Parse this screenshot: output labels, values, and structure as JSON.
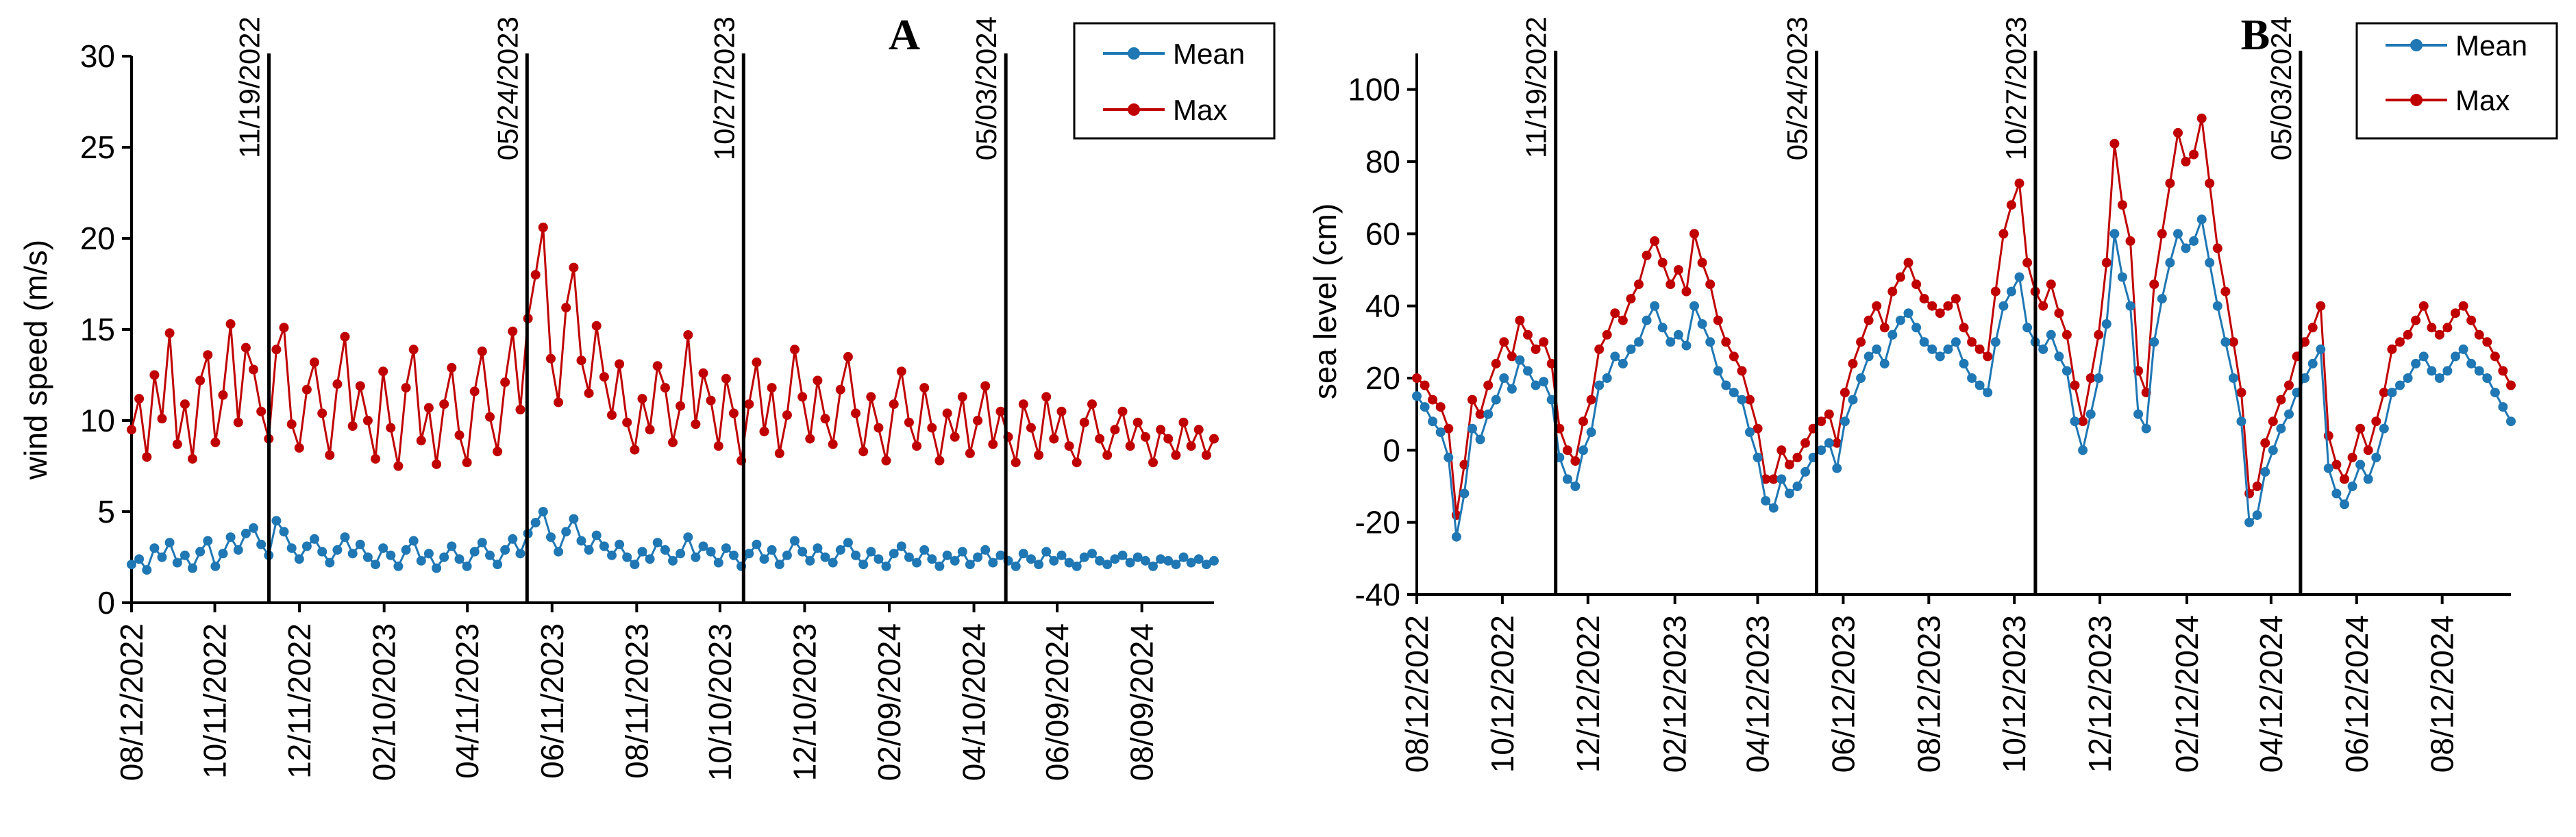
{
  "colors": {
    "mean": "#1f77b4",
    "max": "#c00000",
    "axis": "#000000"
  },
  "chart_data": [
    {
      "type": "line",
      "panel_label": "A",
      "title": "",
      "xlabel": "",
      "ylabel": "wind speed (m/s)",
      "ylim": [
        0,
        30
      ],
      "yticks": [
        "0",
        "5",
        "10",
        "15",
        "20",
        "25",
        "30"
      ],
      "x_start": "2022-08-12",
      "x_end": "2024-09-30",
      "x_tick_labels": [
        "08/12/2022",
        "10/11/2022",
        "12/11/2022",
        "02/10/2023",
        "04/11/2023",
        "06/11/2023",
        "08/11/2023",
        "10/10/2023",
        "12/10/2023",
        "02/09/2024",
        "04/10/2024",
        "06/09/2024",
        "08/09/2024"
      ],
      "x_tick_dates": [
        "2022-08-12",
        "2022-10-11",
        "2022-12-11",
        "2023-02-10",
        "2023-04-11",
        "2023-06-11",
        "2023-08-11",
        "2023-10-10",
        "2023-12-10",
        "2024-02-09",
        "2024-04-10",
        "2024-06-09",
        "2024-08-09"
      ],
      "event_labels": [
        "11/19/2022",
        "05/24/2023",
        "10/27/2023",
        "05/03/2024"
      ],
      "event_dates": [
        "2022-11-19",
        "2023-05-24",
        "2023-10-27",
        "2024-05-03"
      ],
      "legend": {
        "position": "top-right",
        "entries": [
          "Mean",
          "Max"
        ]
      },
      "series": [
        {
          "name": "Mean",
          "description": "daily mean wind speed; sampled every 5 days (values estimated)",
          "values": [
            2.1,
            2.4,
            1.8,
            3.0,
            2.5,
            3.3,
            2.2,
            2.6,
            1.9,
            2.8,
            3.4,
            2.0,
            2.7,
            3.6,
            2.9,
            3.8,
            4.1,
            3.2,
            2.6,
            4.5,
            3.9,
            3.0,
            2.4,
            3.1,
            3.5,
            2.8,
            2.2,
            2.9,
            3.6,
            2.7,
            3.2,
            2.5,
            2.1,
            3.0,
            2.6,
            2.0,
            2.9,
            3.4,
            2.3,
            2.7,
            1.9,
            2.5,
            3.1,
            2.4,
            2.0,
            2.8,
            3.3,
            2.6,
            2.1,
            2.9,
            3.5,
            2.7,
            3.8,
            4.4,
            5.0,
            3.6,
            2.8,
            3.9,
            4.6,
            3.4,
            2.9,
            3.7,
            3.1,
            2.6,
            3.2,
            2.5,
            2.1,
            2.8,
            2.4,
            3.3,
            2.9,
            2.3,
            2.7,
            3.6,
            2.5,
            3.1,
            2.8,
            2.2,
            3.0,
            2.6,
            2.0,
            2.7,
            3.2,
            2.4,
            2.9,
            2.1,
            2.6,
            3.4,
            2.8,
            2.3,
            3.0,
            2.5,
            2.2,
            2.9,
            3.3,
            2.6,
            2.1,
            2.8,
            2.4,
            2.0,
            2.7,
            3.1,
            2.5,
            2.2,
            2.9,
            2.4,
            2.0,
            2.6,
            2.3,
            2.8,
            2.1,
            2.5,
            2.9,
            2.2,
            2.6,
            2.3,
            2.0,
            2.7,
            2.4,
            2.1,
            2.8,
            2.3,
            2.6,
            2.2,
            2.0,
            2.5,
            2.7,
            2.3,
            2.1,
            2.4,
            2.6,
            2.2,
            2.5,
            2.3,
            2.0,
            2.4,
            2.3,
            2.1,
            2.5,
            2.2,
            2.4,
            2.1,
            2.3
          ]
        },
        {
          "name": "Max",
          "description": "daily maximum wind speed; sampled every 5 days (values estimated)",
          "values": [
            9.5,
            11.2,
            8.0,
            12.5,
            10.1,
            14.8,
            8.7,
            10.9,
            7.9,
            12.2,
            13.6,
            8.8,
            11.4,
            15.3,
            9.9,
            14.0,
            12.8,
            10.5,
            9.0,
            13.9,
            15.1,
            9.8,
            8.5,
            11.7,
            13.2,
            10.4,
            8.1,
            12.0,
            14.6,
            9.7,
            11.9,
            10.0,
            7.9,
            12.7,
            9.6,
            7.5,
            11.8,
            13.9,
            8.9,
            10.7,
            7.6,
            10.9,
            12.9,
            9.2,
            7.7,
            11.6,
            13.8,
            10.2,
            8.3,
            12.1,
            14.9,
            10.6,
            15.6,
            18.0,
            20.6,
            13.4,
            11.0,
            16.2,
            18.4,
            13.3,
            11.5,
            15.2,
            12.4,
            10.3,
            13.1,
            9.9,
            8.4,
            11.2,
            9.5,
            13.0,
            11.8,
            8.8,
            10.8,
            14.7,
            9.8,
            12.6,
            11.1,
            8.6,
            12.3,
            10.4,
            7.8,
            10.9,
            13.2,
            9.4,
            11.8,
            8.2,
            10.3,
            13.9,
            11.3,
            9.0,
            12.2,
            10.1,
            8.7,
            11.7,
            13.5,
            10.4,
            8.3,
            11.3,
            9.6,
            7.8,
            10.9,
            12.7,
            9.9,
            8.6,
            11.8,
            9.6,
            7.8,
            10.4,
            9.1,
            11.3,
            8.2,
            10.0,
            11.9,
            8.7,
            10.5,
            9.1,
            7.7,
            10.9,
            9.6,
            8.1,
            11.3,
            9.0,
            10.5,
            8.6,
            7.7,
            9.9,
            10.9,
            9.0,
            8.1,
            9.5,
            10.5,
            8.6,
            9.9,
            9.1,
            7.7,
            9.5,
            9.0,
            8.1,
            9.9,
            8.6,
            9.5,
            8.1,
            9.0
          ]
        }
      ]
    },
    {
      "type": "line",
      "panel_label": "B",
      "title": "",
      "xlabel": "",
      "ylabel": "sea level (cm)",
      "ylim": [
        -40,
        110
      ],
      "yticks": [
        "-40",
        "-20",
        "0",
        "20",
        "40",
        "60",
        "80",
        "100"
      ],
      "x_start": "2022-08-12",
      "x_end": "2024-09-30",
      "x_tick_labels": [
        "08/12/2022",
        "10/12/2022",
        "12/12/2022",
        "02/12/2023",
        "04/12/2023",
        "06/12/2023",
        "08/12/2023",
        "10/12/2023",
        "12/12/2023",
        "02/12/2024",
        "04/12/2024",
        "06/12/2024",
        "08/12/2024"
      ],
      "x_tick_dates": [
        "2022-08-12",
        "2022-10-12",
        "2022-12-12",
        "2023-02-12",
        "2023-04-12",
        "2023-06-12",
        "2023-08-12",
        "2023-10-12",
        "2023-12-12",
        "2024-02-12",
        "2024-04-12",
        "2024-06-12",
        "2024-08-12"
      ],
      "event_labels": [
        "11/19/2022",
        "05/24/2023",
        "10/27/2023",
        "05/03/2024"
      ],
      "event_dates": [
        "2022-11-19",
        "2023-05-24",
        "2023-10-27",
        "2024-05-03"
      ],
      "legend": {
        "position": "top-right",
        "entries": [
          "Mean",
          "Max"
        ]
      },
      "series": [
        {
          "name": "Mean",
          "description": "daily mean sea level; sampled every 5 days (values estimated)",
          "values": [
            15,
            12,
            8,
            5,
            -2,
            -24,
            -12,
            6,
            3,
            10,
            14,
            20,
            17,
            25,
            22,
            18,
            19,
            14,
            -2,
            -8,
            -10,
            0,
            5,
            18,
            20,
            26,
            24,
            28,
            30,
            36,
            40,
            34,
            30,
            32,
            29,
            40,
            35,
            30,
            22,
            18,
            16,
            14,
            5,
            -2,
            -14,
            -16,
            -8,
            -12,
            -10,
            -6,
            -2,
            0,
            2,
            -5,
            8,
            14,
            20,
            26,
            28,
            24,
            32,
            36,
            38,
            34,
            30,
            28,
            26,
            28,
            30,
            24,
            20,
            18,
            16,
            30,
            40,
            44,
            48,
            34,
            30,
            28,
            32,
            26,
            22,
            8,
            0,
            10,
            20,
            35,
            60,
            48,
            40,
            10,
            6,
            30,
            42,
            52,
            60,
            56,
            58,
            64,
            52,
            40,
            30,
            20,
            8,
            -20,
            -18,
            -6,
            0,
            6,
            10,
            16,
            20,
            24,
            28,
            -5,
            -12,
            -15,
            -10,
            -4,
            -8,
            -2,
            6,
            16,
            18,
            20,
            24,
            26,
            22,
            20,
            22,
            26,
            28,
            24,
            22,
            20,
            16,
            12,
            8
          ]
        },
        {
          "name": "Max",
          "description": "daily maximum sea level; sampled every 5 days (values estimated)",
          "values": [
            20,
            18,
            14,
            12,
            6,
            -18,
            -4,
            14,
            10,
            18,
            24,
            30,
            26,
            36,
            32,
            28,
            30,
            24,
            6,
            0,
            -3,
            8,
            14,
            28,
            32,
            38,
            36,
            42,
            46,
            54,
            58,
            52,
            46,
            50,
            44,
            60,
            52,
            46,
            36,
            30,
            26,
            22,
            14,
            6,
            -8,
            -8,
            0,
            -4,
            -2,
            2,
            6,
            8,
            10,
            2,
            16,
            24,
            30,
            36,
            40,
            34,
            44,
            48,
            52,
            46,
            42,
            40,
            38,
            40,
            42,
            34,
            30,
            28,
            26,
            44,
            60,
            68,
            74,
            52,
            44,
            40,
            46,
            38,
            32,
            18,
            8,
            20,
            32,
            52,
            85,
            68,
            58,
            22,
            16,
            46,
            60,
            74,
            88,
            80,
            82,
            92,
            74,
            56,
            44,
            30,
            16,
            -12,
            -10,
            2,
            8,
            14,
            18,
            26,
            30,
            34,
            40,
            4,
            -4,
            -8,
            -2,
            6,
            0,
            8,
            16,
            28,
            30,
            32,
            36,
            40,
            34,
            32,
            34,
            38,
            40,
            36,
            32,
            30,
            26,
            22,
            18
          ]
        }
      ]
    }
  ]
}
